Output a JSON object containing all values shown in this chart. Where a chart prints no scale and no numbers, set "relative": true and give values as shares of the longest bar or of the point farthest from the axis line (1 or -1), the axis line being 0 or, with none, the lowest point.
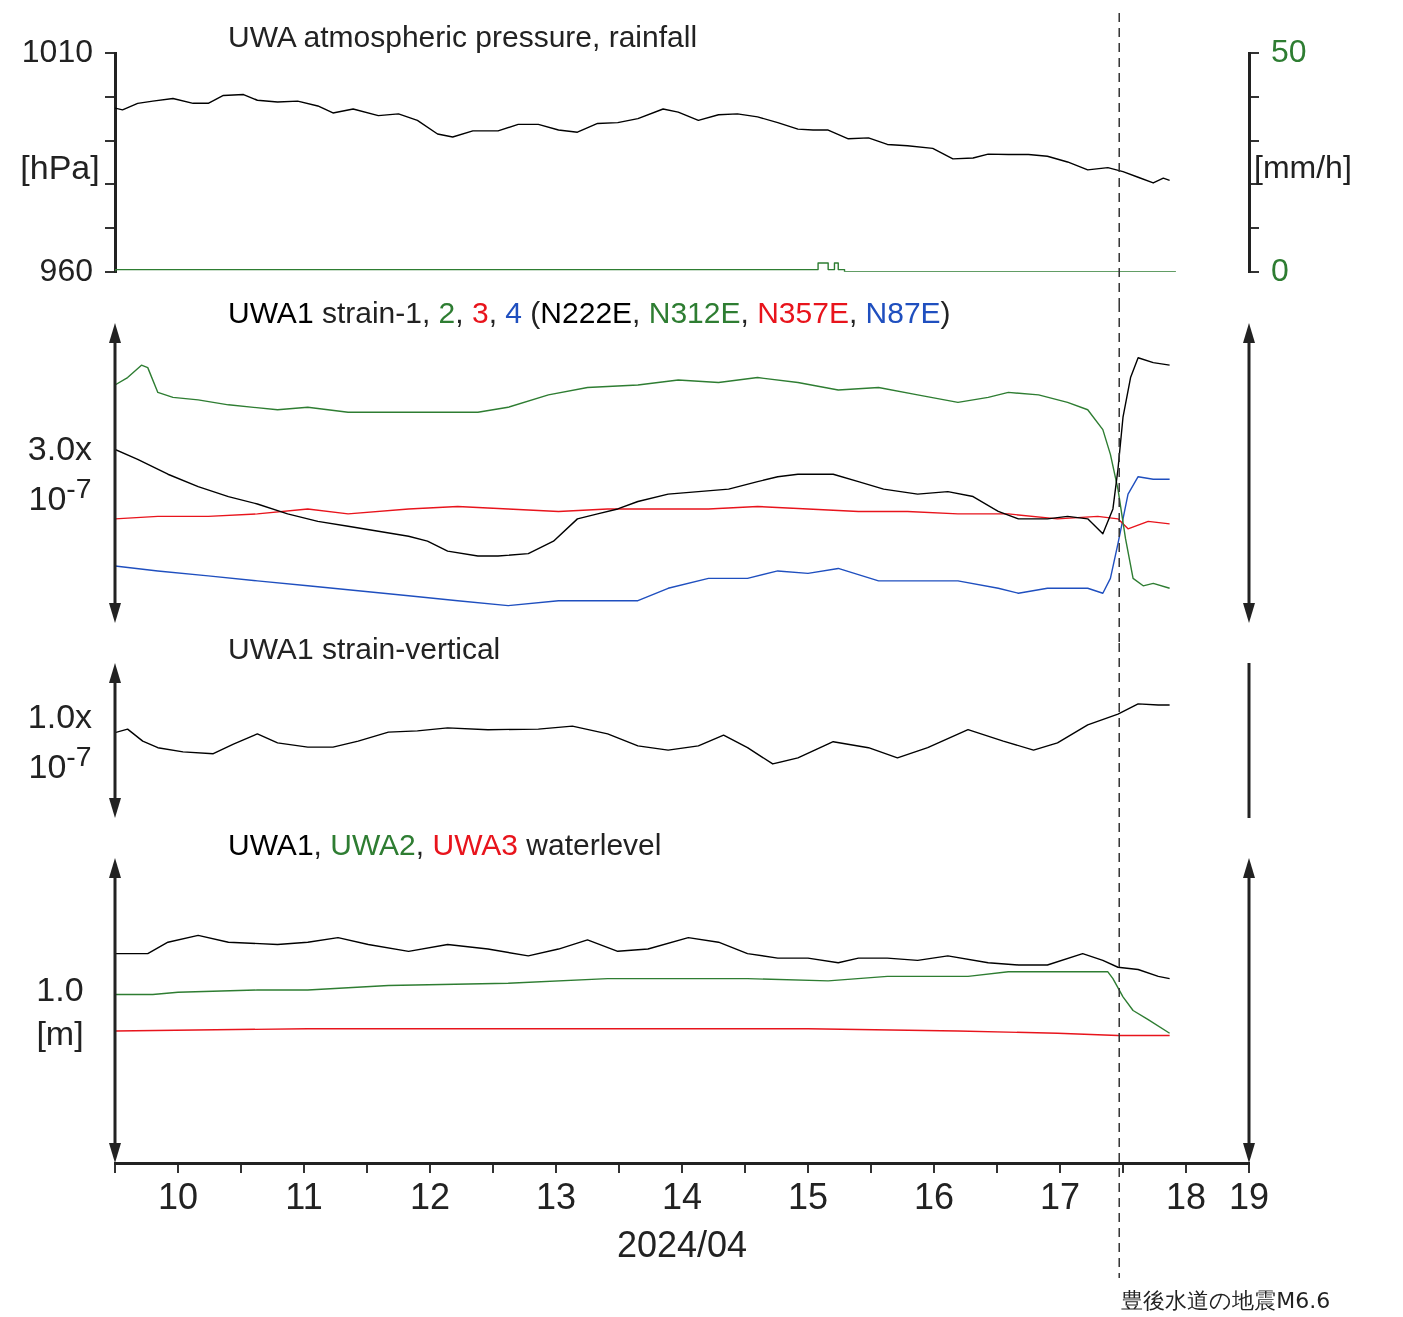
{
  "chart_data": [
    {
      "type": "line",
      "title": "UWA atmospheric pressure, rainfall",
      "ylabel": "[hPa]",
      "y2label": "[mm/h]",
      "xlim": [
        10,
        19
      ],
      "ylim": [
        960,
        1010
      ],
      "yticks": [
        960,
        {
          "value": 970,
          "label": null
        },
        {
          "value": 980,
          "label": null
        },
        {
          "value": 990,
          "label": null
        },
        {
          "value": 1000,
          "label": null
        },
        1010
      ],
      "y2lim": [
        0,
        50
      ],
      "y2ticks": [
        0,
        {
          "value": 10,
          "label": null
        },
        {
          "value": 20,
          "label": null
        },
        {
          "value": 30,
          "label": null
        },
        {
          "value": 40,
          "label": null
        },
        50
      ],
      "tick_labels": "y",
      "grid": false,
      "series": [
        {
          "color": "#000000",
          "x": [
            10.0,
            10.06,
            10.18,
            10.3,
            10.46,
            10.62,
            10.74,
            10.86,
            11.02,
            11.13,
            11.29,
            11.45,
            11.61,
            11.73,
            11.89,
            12.09,
            12.25,
            12.4,
            12.56,
            12.68,
            12.84,
            13.04,
            13.2,
            13.36,
            13.52,
            13.67,
            13.83,
            13.99,
            14.15,
            14.35,
            14.47,
            14.63,
            14.79,
            14.94,
            15.1,
            15.26,
            15.42,
            15.54,
            15.66,
            15.82,
            15.98,
            16.13,
            16.29,
            16.49,
            16.65,
            16.81,
            16.93,
            17.09,
            17.25,
            17.4,
            17.56,
            17.72,
            17.88,
            18.0,
            18.12,
            18.24,
            18.32,
            18.37
          ],
          "values": [
            997.4,
            997.0,
            998.5,
            999.0,
            999.6,
            998.5,
            998.5,
            1000.3,
            1000.5,
            999.2,
            998.8,
            999.0,
            997.9,
            996.3,
            997.2,
            995.7,
            996.1,
            994.6,
            991.5,
            990.8,
            992.2,
            992.2,
            993.7,
            993.7,
            992.4,
            991.9,
            993.9,
            994.1,
            995.0,
            997.2,
            996.5,
            994.6,
            995.9,
            996.1,
            995.4,
            994.1,
            992.6,
            992.4,
            992.4,
            990.4,
            990.6,
            989.1,
            988.8,
            988.2,
            985.8,
            986.0,
            986.9,
            986.8,
            986.8,
            986.4,
            985.1,
            983.3,
            983.8,
            982.9,
            981.6,
            980.3,
            981.4,
            980.9
          ]
        },
        {
          "type": "step",
          "axis": "y2",
          "color": "#2e7d32",
          "x": [
            10.0,
            15.58,
            15.66,
            15.71,
            15.74,
            15.79,
            15.83,
            18.42
          ],
          "values": [
            0,
            0.5,
            2,
            0.5,
            2,
            0.5,
            0,
            0
          ]
        }
      ],
      "ref_lines": [
        {
          "axis": "x",
          "value": 17.97,
          "line_style": "dashed",
          "color": "#333333"
        }
      ]
    },
    {
      "type": "line",
      "title": "UWA1 strain-1, 2, 3, 4 (N222E, N312E, N357E, N87E)",
      "ylabel": "3.0x 10$^{-7}$",
      "relative": true,
      "xlim": [
        10,
        19
      ],
      "tick_labels": false,
      "grid": false,
      "series": [
        {
          "color": "#000000",
          "x": [
            10.0,
            10.18,
            10.42,
            10.66,
            10.9,
            11.13,
            11.37,
            11.61,
            11.85,
            12.09,
            12.33,
            12.48,
            12.64,
            12.88,
            13.04,
            13.28,
            13.48,
            13.67,
            13.83,
            13.99,
            14.15,
            14.39,
            14.63,
            14.87,
            15.1,
            15.26,
            15.42,
            15.7,
            15.9,
            16.1,
            16.37,
            16.61,
            16.81,
            17.01,
            17.17,
            17.4,
            17.56,
            17.72,
            17.84,
            17.92,
            17.96,
            18.0,
            18.06,
            18.12,
            18.24,
            18.37
          ],
          "values": [
            0.63,
            0.59,
            0.53,
            0.48,
            0.44,
            0.41,
            0.37,
            0.34,
            0.32,
            0.3,
            0.28,
            0.26,
            0.22,
            0.2,
            0.2,
            0.21,
            0.26,
            0.35,
            0.37,
            0.39,
            0.42,
            0.45,
            0.46,
            0.47,
            0.5,
            0.52,
            0.53,
            0.53,
            0.5,
            0.47,
            0.45,
            0.46,
            0.44,
            0.38,
            0.35,
            0.35,
            0.36,
            0.35,
            0.29,
            0.39,
            0.55,
            0.76,
            0.92,
            1.0,
            0.98,
            0.97
          ]
        },
        {
          "color": "#2e7d32",
          "x": [
            10.0,
            10.1,
            10.21,
            10.26,
            10.34,
            10.46,
            10.66,
            10.9,
            11.29,
            11.53,
            11.85,
            12.17,
            12.48,
            12.88,
            13.12,
            13.44,
            13.75,
            14.15,
            14.47,
            14.79,
            15.1,
            15.42,
            15.74,
            16.06,
            16.37,
            16.69,
            16.93,
            17.09,
            17.33,
            17.56,
            17.72,
            17.84,
            17.9,
            17.96,
            18.02,
            18.08,
            18.16,
            18.24,
            18.37
          ],
          "values": [
            0.89,
            0.92,
            0.97,
            0.96,
            0.86,
            0.84,
            0.83,
            0.81,
            0.79,
            0.8,
            0.78,
            0.78,
            0.78,
            0.78,
            0.8,
            0.85,
            0.88,
            0.89,
            0.91,
            0.9,
            0.92,
            0.9,
            0.87,
            0.88,
            0.85,
            0.82,
            0.84,
            0.86,
            0.85,
            0.82,
            0.79,
            0.71,
            0.61,
            0.47,
            0.27,
            0.11,
            0.08,
            0.09,
            0.07
          ]
        },
        {
          "color": "#e8141c",
          "x": [
            10.0,
            10.34,
            10.74,
            11.13,
            11.53,
            11.85,
            12.33,
            12.72,
            13.12,
            13.52,
            13.91,
            14.31,
            14.71,
            15.1,
            15.5,
            15.9,
            16.29,
            16.69,
            17.09,
            17.48,
            17.8,
            17.96,
            18.04,
            18.2,
            18.37
          ],
          "values": [
            0.35,
            0.36,
            0.36,
            0.37,
            0.39,
            0.37,
            0.39,
            0.4,
            0.39,
            0.38,
            0.39,
            0.39,
            0.39,
            0.4,
            0.39,
            0.38,
            0.38,
            0.37,
            0.37,
            0.35,
            0.36,
            0.35,
            0.31,
            0.34,
            0.33
          ]
        },
        {
          "color": "#1f4fbf",
          "x": [
            10.0,
            10.34,
            10.74,
            11.13,
            11.53,
            11.93,
            12.33,
            12.72,
            13.12,
            13.52,
            13.91,
            14.15,
            14.39,
            14.71,
            15.02,
            15.26,
            15.5,
            15.74,
            16.06,
            16.29,
            16.69,
            17.01,
            17.17,
            17.4,
            17.72,
            17.84,
            17.9,
            17.96,
            18.04,
            18.12,
            18.24,
            18.37
          ],
          "values": [
            0.16,
            0.14,
            0.12,
            0.1,
            0.08,
            0.06,
            0.04,
            0.02,
            0.0,
            0.02,
            0.02,
            0.02,
            0.07,
            0.11,
            0.11,
            0.14,
            0.13,
            0.15,
            0.1,
            0.1,
            0.1,
            0.07,
            0.05,
            0.07,
            0.07,
            0.05,
            0.11,
            0.25,
            0.45,
            0.52,
            0.51,
            0.51
          ]
        }
      ],
      "ref_lines": [
        {
          "axis": "x",
          "value": 17.97,
          "line_style": "dashed",
          "color": "#333333"
        }
      ]
    },
    {
      "type": "line",
      "title": "UWA1 strain-vertical",
      "ylabel": "1.0x 10$^{-7}$",
      "relative": true,
      "xlim": [
        10,
        19
      ],
      "tick_labels": false,
      "grid": false,
      "series": [
        {
          "color": "#000000",
          "x": [
            10.0,
            10.1,
            10.22,
            10.34,
            10.54,
            10.78,
            10.94,
            11.13,
            11.29,
            11.53,
            11.73,
            11.93,
            12.17,
            12.4,
            12.64,
            12.96,
            13.36,
            13.63,
            13.91,
            14.15,
            14.39,
            14.63,
            14.83,
            15.02,
            15.22,
            15.42,
            15.7,
            15.98,
            16.21,
            16.45,
            16.77,
            17.05,
            17.29,
            17.48,
            17.72,
            17.96,
            18.12,
            18.28,
            18.37
          ],
          "values": [
            0.52,
            0.58,
            0.38,
            0.27,
            0.2,
            0.17,
            0.33,
            0.5,
            0.35,
            0.28,
            0.28,
            0.38,
            0.53,
            0.55,
            0.6,
            0.57,
            0.58,
            0.63,
            0.5,
            0.3,
            0.23,
            0.3,
            0.48,
            0.27,
            0.0,
            0.1,
            0.37,
            0.27,
            0.1,
            0.27,
            0.57,
            0.38,
            0.23,
            0.35,
            0.65,
            0.83,
            1.0,
            0.98,
            0.98
          ]
        }
      ],
      "ref_lines": [
        {
          "axis": "x",
          "value": 17.97,
          "line_style": "dashed",
          "color": "#333333"
        }
      ]
    },
    {
      "type": "line",
      "title": "UWA1, UWA2, UWA3 waterlevel",
      "ylabel": "1.0 [m]",
      "xlabel": "2024/04",
      "relative": true,
      "xlim": [
        10,
        19
      ],
      "xticks": [
        {
          "value": 10,
          "label": null
        },
        {
          "value": 10.5,
          "label": "10"
        },
        {
          "value": 11,
          "label": null
        },
        {
          "value": 11.5,
          "label": "11"
        },
        {
          "value": 12,
          "label": null
        },
        {
          "value": 12.5,
          "label": "12"
        },
        {
          "value": 13,
          "label": null
        },
        {
          "value": 13.5,
          "label": "13"
        },
        {
          "value": 14,
          "label": null
        },
        {
          "value": 14.5,
          "label": "14"
        },
        {
          "value": 15,
          "label": null
        },
        {
          "value": 15.5,
          "label": "15"
        },
        {
          "value": 16,
          "label": null
        },
        {
          "value": 16.5,
          "label": "16"
        },
        {
          "value": 17,
          "label": null
        },
        {
          "value": 17.5,
          "label": "17"
        },
        {
          "value": 18,
          "label": null
        },
        {
          "value": 18.5,
          "label": "18"
        },
        19
      ],
      "tick_labels": "x",
      "grid": false,
      "series": [
        {
          "color": "#000000",
          "x": [
            10.0,
            10.26,
            10.42,
            10.66,
            10.9,
            11.29,
            11.53,
            11.77,
            12.01,
            12.33,
            12.64,
            12.96,
            13.28,
            13.52,
            13.75,
            13.99,
            14.23,
            14.55,
            14.79,
            15.02,
            15.26,
            15.5,
            15.74,
            15.9,
            16.13,
            16.37,
            16.61,
            16.93,
            17.17,
            17.4,
            17.68,
            17.84,
            17.96,
            18.12,
            18.28,
            18.37
          ],
          "values": [
            0.92,
            0.92,
            0.97,
            1.0,
            0.97,
            0.96,
            0.97,
            0.99,
            0.96,
            0.93,
            0.96,
            0.94,
            0.91,
            0.94,
            0.98,
            0.93,
            0.94,
            0.99,
            0.97,
            0.92,
            0.9,
            0.9,
            0.88,
            0.9,
            0.9,
            0.89,
            0.91,
            0.88,
            0.87,
            0.87,
            0.92,
            0.89,
            0.86,
            0.85,
            0.82,
            0.81
          ]
        },
        {
          "color": "#2e7d32",
          "x": [
            10.0,
            10.3,
            10.5,
            11.13,
            11.53,
            12.17,
            13.12,
            13.91,
            15.02,
            15.66,
            16.13,
            16.77,
            17.09,
            17.88,
            17.92,
            18.0,
            18.08,
            18.2,
            18.37
          ],
          "values": [
            0.74,
            0.74,
            0.75,
            0.76,
            0.76,
            0.78,
            0.79,
            0.81,
            0.81,
            0.8,
            0.82,
            0.82,
            0.84,
            0.84,
            0.81,
            0.73,
            0.67,
            0.63,
            0.57
          ]
        },
        {
          "color": "#e8141c",
          "x": [
            10.0,
            11.53,
            12.33,
            13.91,
            15.5,
            16.69,
            17.48,
            17.96,
            18.12,
            18.37
          ],
          "values": [
            0.58,
            0.59,
            0.59,
            0.59,
            0.59,
            0.58,
            0.57,
            0.56,
            0.56,
            0.56
          ]
        }
      ],
      "ref_lines": [
        {
          "axis": "x",
          "value": 17.97,
          "line_style": "dashed",
          "color": "#333333",
          "label": "豊後水道の地震M6.6"
        }
      ]
    }
  ]
}
